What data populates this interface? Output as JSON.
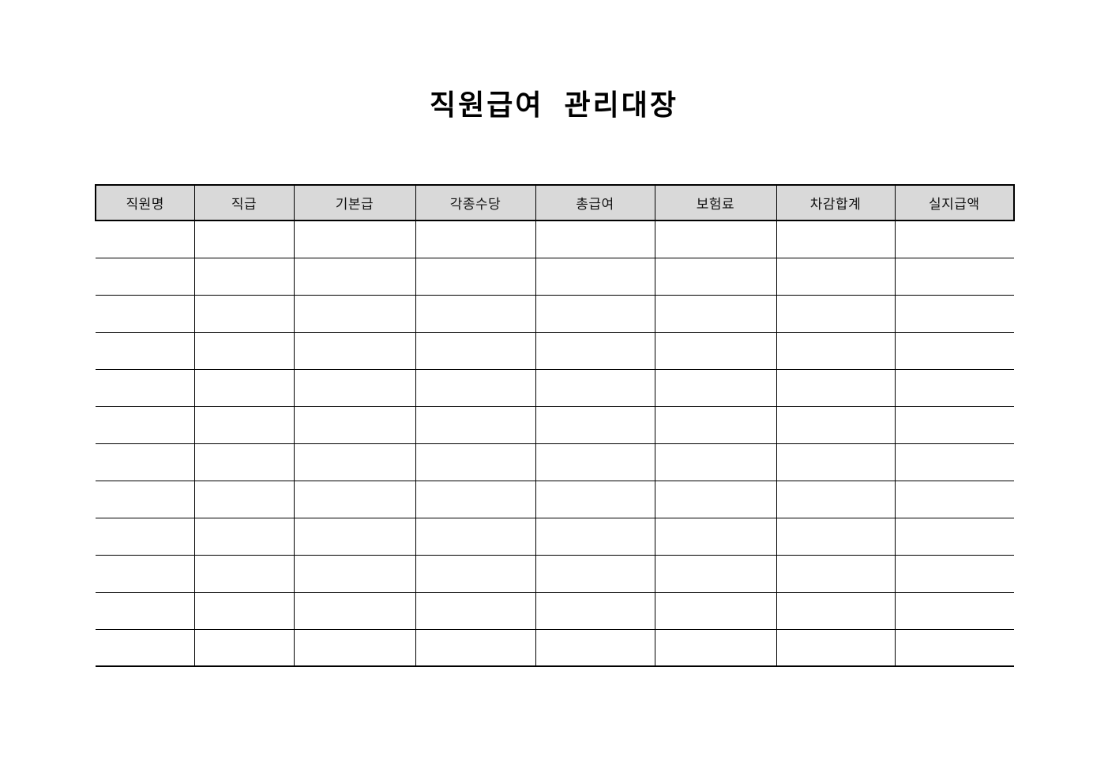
{
  "document": {
    "title": "직원급여  관리대장",
    "background_color": "#ffffff"
  },
  "table": {
    "columns": [
      "직원명",
      "직급",
      "기본급",
      "각종수당",
      "총급여",
      "보험료",
      "차감합계",
      "실지급액"
    ],
    "empty_row_count": 12,
    "header_bg_color": "#d9d9d9",
    "border_color": "#000000",
    "cell_values": []
  }
}
